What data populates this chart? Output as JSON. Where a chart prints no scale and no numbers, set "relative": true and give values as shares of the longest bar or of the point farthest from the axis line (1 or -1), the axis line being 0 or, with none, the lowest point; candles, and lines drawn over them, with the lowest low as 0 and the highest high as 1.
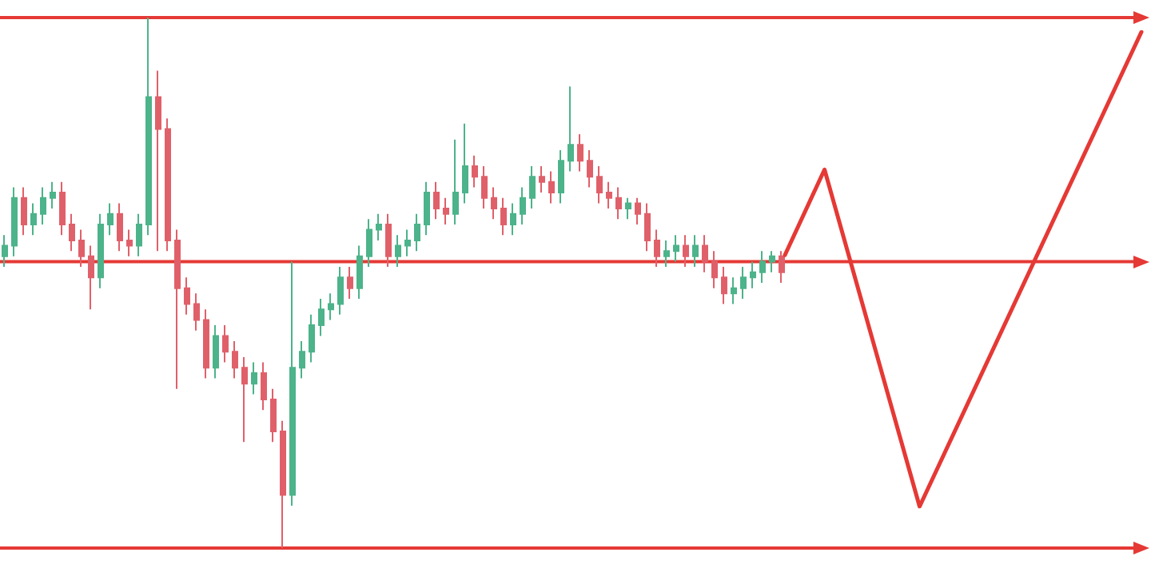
{
  "chart_data": [
    {
      "type": "candlestick",
      "relative": true,
      "categories": [
        null,
        null,
        null,
        null,
        null,
        null,
        null,
        null,
        null,
        null,
        null,
        null,
        null,
        null,
        null,
        null,
        null,
        null,
        null,
        null,
        null,
        null,
        null,
        null,
        null,
        null,
        null,
        null,
        null,
        null,
        null,
        null,
        null,
        null,
        null,
        null,
        null,
        null,
        null,
        null,
        null,
        null,
        null,
        null,
        null,
        null,
        null,
        null,
        null,
        null,
        null,
        null,
        null,
        null,
        null,
        null,
        null,
        null,
        null,
        null,
        null,
        null,
        null,
        null,
        null,
        null,
        null,
        null,
        null,
        null,
        null,
        null,
        null,
        null,
        null,
        null,
        null,
        null,
        null,
        null,
        null,
        null
      ],
      "ohlc": [
        [
          0.55,
          0.59,
          0.53,
          0.57
        ],
        [
          0.57,
          0.68,
          0.55,
          0.66
        ],
        [
          0.66,
          0.68,
          0.59,
          0.61
        ],
        [
          0.61,
          0.65,
          0.59,
          0.63
        ],
        [
          0.63,
          0.68,
          0.61,
          0.66
        ],
        [
          0.66,
          0.69,
          0.64,
          0.67
        ],
        [
          0.67,
          0.69,
          0.59,
          0.61
        ],
        [
          0.61,
          0.63,
          0.56,
          0.58
        ],
        [
          0.58,
          0.6,
          0.53,
          0.55
        ],
        [
          0.55,
          0.57,
          0.45,
          0.51
        ],
        [
          0.51,
          0.63,
          0.49,
          0.61
        ],
        [
          0.61,
          0.65,
          0.59,
          0.63
        ],
        [
          0.63,
          0.65,
          0.56,
          0.58
        ],
        [
          0.58,
          0.6,
          0.55,
          0.57
        ],
        [
          0.57,
          0.63,
          0.55,
          0.61
        ],
        [
          0.61,
          1,
          0.59,
          0.85
        ],
        [
          0.85,
          0.9,
          0.56,
          0.79
        ],
        [
          0.79,
          0.81,
          0.56,
          0.58
        ],
        [
          0.58,
          0.6,
          0.3,
          0.49
        ],
        [
          0.49,
          0.51,
          0.44,
          0.46
        ],
        [
          0.46,
          0.48,
          0.41,
          0.43
        ],
        [
          0.43,
          0.45,
          0.32,
          0.34
        ],
        [
          0.34,
          0.42,
          0.32,
          0.4
        ],
        [
          0.4,
          0.42,
          0.35,
          0.37
        ],
        [
          0.37,
          0.39,
          0.32,
          0.34
        ],
        [
          0.34,
          0.36,
          0.2,
          0.31
        ],
        [
          0.31,
          0.35,
          0.29,
          0.33
        ],
        [
          0.33,
          0.35,
          0.26,
          0.28
        ],
        [
          0.28,
          0.3,
          0.2,
          0.22
        ],
        [
          0.22,
          0.24,
          0,
          0.1
        ],
        [
          0.1,
          0.54,
          0.08,
          0.34
        ],
        [
          0.34,
          0.39,
          0.32,
          0.37
        ],
        [
          0.37,
          0.44,
          0.35,
          0.42
        ],
        [
          0.42,
          0.47,
          0.4,
          0.45
        ],
        [
          0.45,
          0.48,
          0.43,
          0.46
        ],
        [
          0.46,
          0.53,
          0.44,
          0.51
        ],
        [
          0.51,
          0.53,
          0.47,
          0.49
        ],
        [
          0.49,
          0.57,
          0.47,
          0.55
        ],
        [
          0.55,
          0.62,
          0.53,
          0.6
        ],
        [
          0.6,
          0.63,
          0.58,
          0.61
        ],
        [
          0.61,
          0.63,
          0.53,
          0.55
        ],
        [
          0.55,
          0.59,
          0.53,
          0.57
        ],
        [
          0.57,
          0.6,
          0.55,
          0.58
        ],
        [
          0.58,
          0.63,
          0.56,
          0.61
        ],
        [
          0.61,
          0.69,
          0.59,
          0.67
        ],
        [
          0.67,
          0.69,
          0.62,
          0.64
        ],
        [
          0.64,
          0.66,
          0.61,
          0.63
        ],
        [
          0.63,
          0.77,
          0.61,
          0.67
        ],
        [
          0.67,
          0.8,
          0.65,
          0.72
        ],
        [
          0.72,
          0.74,
          0.68,
          0.7
        ],
        [
          0.7,
          0.72,
          0.64,
          0.66
        ],
        [
          0.66,
          0.68,
          0.62,
          0.64
        ],
        [
          0.64,
          0.66,
          0.59,
          0.61
        ],
        [
          0.61,
          0.65,
          0.59,
          0.63
        ],
        [
          0.63,
          0.68,
          0.61,
          0.66
        ],
        [
          0.66,
          0.72,
          0.64,
          0.7
        ],
        [
          0.7,
          0.72,
          0.67,
          0.69
        ],
        [
          0.69,
          0.71,
          0.65,
          0.67
        ],
        [
          0.67,
          0.75,
          0.65,
          0.73
        ],
        [
          0.73,
          0.87,
          0.71,
          0.76
        ],
        [
          0.76,
          0.78,
          0.71,
          0.73
        ],
        [
          0.73,
          0.75,
          0.68,
          0.7
        ],
        [
          0.7,
          0.72,
          0.65,
          0.67
        ],
        [
          0.67,
          0.69,
          0.64,
          0.66
        ],
        [
          0.66,
          0.68,
          0.62,
          0.64
        ],
        [
          0.64,
          0.66,
          0.62,
          0.65
        ],
        [
          0.65,
          0.66,
          0.61,
          0.63
        ],
        [
          0.63,
          0.65,
          0.56,
          0.58
        ],
        [
          0.58,
          0.6,
          0.53,
          0.55
        ],
        [
          0.55,
          0.58,
          0.53,
          0.56
        ],
        [
          0.56,
          0.59,
          0.54,
          0.57
        ],
        [
          0.57,
          0.59,
          0.53,
          0.55
        ],
        [
          0.55,
          0.59,
          0.53,
          0.57
        ],
        [
          0.57,
          0.59,
          0.52,
          0.54
        ],
        [
          0.54,
          0.56,
          0.49,
          0.51
        ],
        [
          0.51,
          0.53,
          0.46,
          0.48
        ],
        [
          0.48,
          0.51,
          0.46,
          0.49
        ],
        [
          0.49,
          0.53,
          0.47,
          0.51
        ],
        [
          0.51,
          0.54,
          0.49,
          0.52
        ],
        [
          0.52,
          0.56,
          0.5,
          0.54
        ],
        [
          0.54,
          0.56,
          0.52,
          0.55
        ],
        [
          0.55,
          0.56,
          0.5,
          0.52
        ]
      ],
      "ref_lines": [
        {
          "axis": "y",
          "value": 1,
          "color": "#e53935"
        },
        {
          "axis": "y",
          "value": 0.54,
          "color": "#e53935"
        },
        {
          "axis": "y",
          "value": 0,
          "color": "#e53935"
        }
      ]
    },
    {
      "type": "line",
      "relative": true,
      "categories": [
        null,
        null,
        null,
        null,
        null,
        null,
        null,
        null,
        null,
        null,
        null,
        null,
        null,
        null,
        null,
        null,
        null,
        null,
        null,
        null,
        null,
        null,
        null,
        null,
        null,
        null,
        null,
        null,
        null,
        null,
        null,
        null,
        null,
        null,
        null,
        null,
        null,
        null,
        null,
        null,
        null,
        null,
        null,
        null,
        null,
        null
      ],
      "series": [
        {
          "color": "#e53935",
          "values": [
            0.53,
            null,
            null,
            null,
            null,
            0.71,
            null,
            null,
            null,
            null,
            null,
            null,
            null,
            null,
            null,
            null,
            null,
            0,
            null,
            null,
            null,
            null,
            null,
            null,
            null,
            null,
            null,
            null,
            null,
            null,
            null,
            null,
            null,
            null,
            null,
            null,
            null,
            null,
            null,
            null,
            null,
            null,
            null,
            null,
            null,
            1
          ]
        }
      ]
    }
  ]
}
